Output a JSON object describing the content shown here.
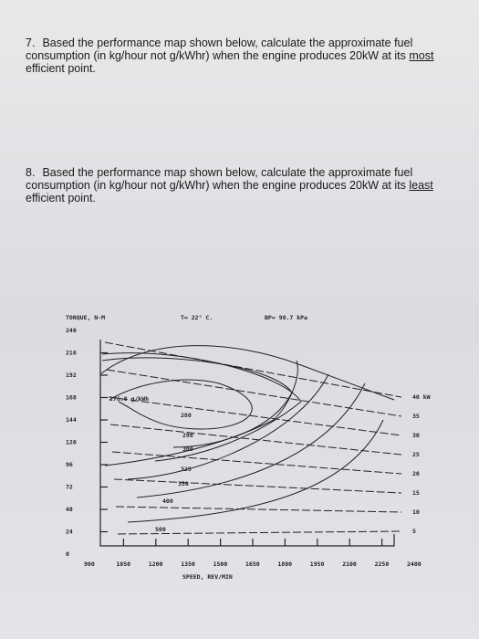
{
  "questions": [
    {
      "number": "7.",
      "before": "Based the performance map shown below, calculate the approximate fuel consumption (in kg/hour not g/kWhr) when the engine produces 20kW at its",
      "emphasis": "most",
      "after": "efficient point."
    },
    {
      "number": "8.",
      "before": "Based the performance map shown below, calculate the approximate fuel consumption (in kg/hour not g/kWhr) when the engine produces 20kW at its",
      "emphasis": "least",
      "after": "efficient point."
    }
  ],
  "map": {
    "y_label": "TORQUE, N-M",
    "temperature": "T= 22° C.",
    "pressure": "BP= 98.7 kPa",
    "x_label": "SPEED, REV/MIN",
    "yticks": [
      240,
      216,
      192,
      168,
      144,
      120,
      96,
      72,
      48,
      24,
      0
    ],
    "xticks": [
      900,
      1050,
      1200,
      1350,
      1500,
      1650,
      1800,
      1950,
      2100,
      2250,
      2400
    ],
    "contours": [
      "276.8 g/kWh",
      "280",
      "290",
      "300",
      "325",
      "350",
      "400",
      "500"
    ],
    "power": [
      "40 kW",
      "35",
      "30",
      "25",
      "20",
      "15",
      "10",
      "5"
    ]
  }
}
